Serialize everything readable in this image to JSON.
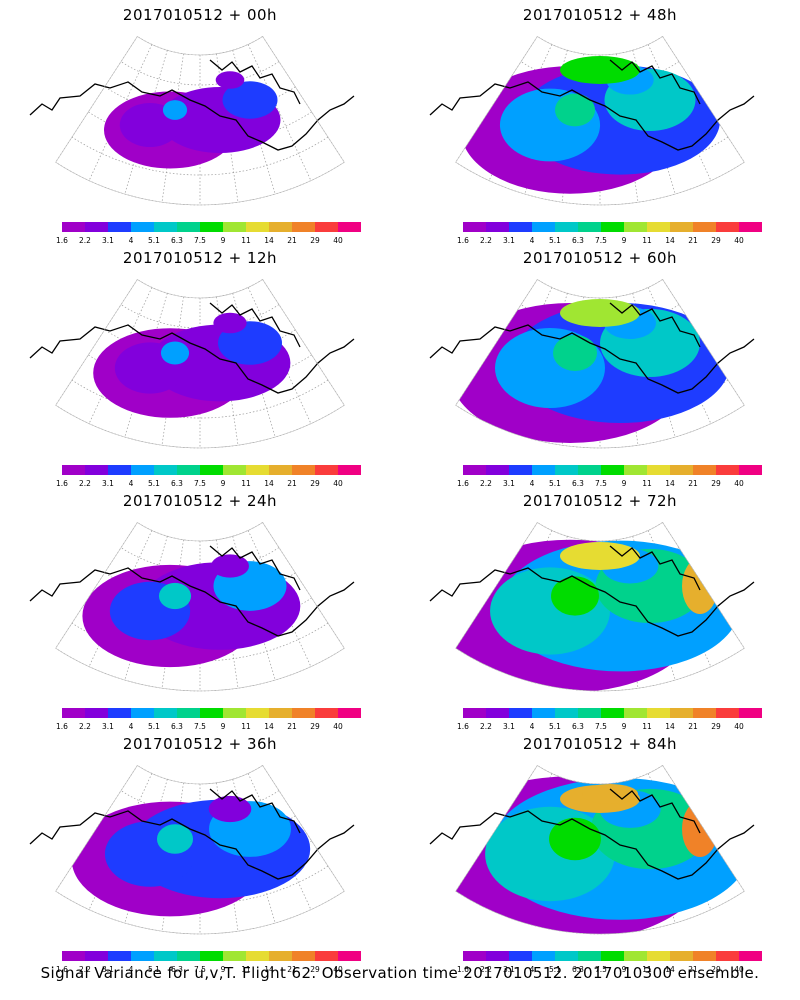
{
  "caption": "Signal Variance for u,v,T. Flight 62. Observation time 2017010512. 2017010300 ensemble.",
  "colorbar": {
    "colors": [
      "#a000c8",
      "#8200dc",
      "#1e3cff",
      "#00a0ff",
      "#00c8c8",
      "#00d28c",
      "#00dc00",
      "#a0e632",
      "#e6dc32",
      "#e6af2d",
      "#f08228",
      "#fa3c3c",
      "#f00082"
    ],
    "labels": [
      "1.6",
      "2.2",
      "3.1",
      "4",
      "5.1",
      "6.3",
      "7.5",
      "9",
      "11",
      "14",
      "21",
      "29",
      "40"
    ]
  },
  "panels": [
    {
      "title": "2017010512 + 00h",
      "level": 0
    },
    {
      "title": "2017010512 + 48h",
      "level": 4
    },
    {
      "title": "2017010512 + 12h",
      "level": 1
    },
    {
      "title": "2017010512 + 60h",
      "level": 5
    },
    {
      "title": "2017010512 + 24h",
      "level": 2
    },
    {
      "title": "2017010512 + 72h",
      "level": 6
    },
    {
      "title": "2017010512 + 36h",
      "level": 3
    },
    {
      "title": "2017010512 + 84h",
      "level": 7
    }
  ]
}
